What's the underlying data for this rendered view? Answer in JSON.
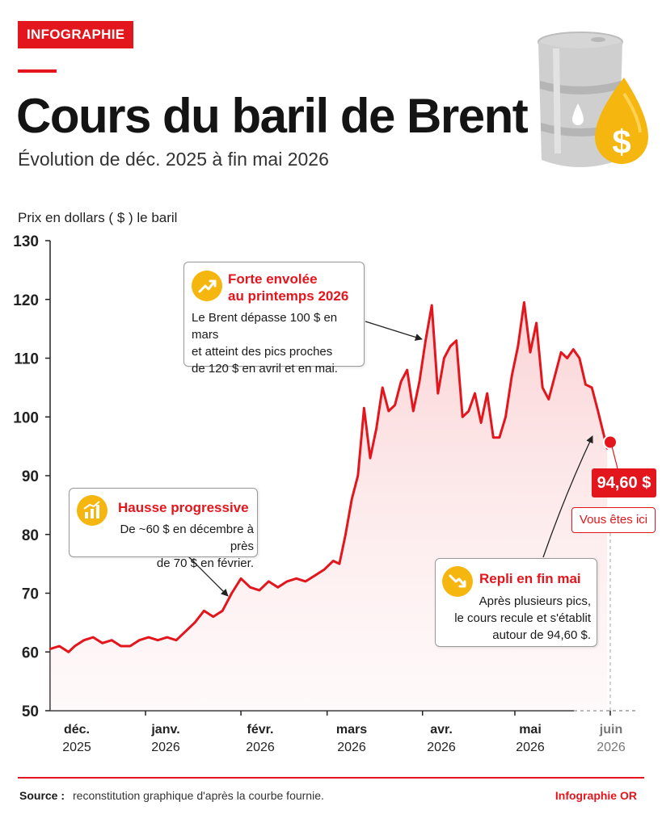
{
  "header": {
    "badge": "INFOGRAPHIE",
    "title": "Cours du baril de Brent",
    "subtitle": "Évolution de déc. 2025 à fin mai 2026"
  },
  "colors": {
    "accent": "#e3161d",
    "icon": "#f5b60f",
    "barrel": "#c9c9c9"
  },
  "icons": {
    "barrel": "oil-barrel-icon",
    "drop": "oil-drop-dollar-icon"
  },
  "chart_data": {
    "type": "line",
    "ylabel": "Prix en dollars ( $ ) le baril",
    "ylim": [
      50,
      130
    ],
    "yticks": [
      "130",
      "120",
      "110",
      "100",
      "90",
      "80",
      "70",
      "60",
      "50"
    ],
    "months": [
      {
        "name": "déc.",
        "year": "2025",
        "faded": false
      },
      {
        "name": "janv.",
        "year": "2026",
        "faded": false
      },
      {
        "name": "févr.",
        "year": "2026",
        "faded": false
      },
      {
        "name": "mars",
        "year": "2026",
        "faded": false
      },
      {
        "name": "avr.",
        "year": "2026",
        "faded": false
      },
      {
        "name": "mai",
        "year": "2026",
        "faded": false
      },
      {
        "name": "juin",
        "year": "2026",
        "faded": true
      }
    ],
    "series": [
      {
        "x": [
          "2025-12-01",
          "2025-12-04",
          "2025-12-07",
          "2025-12-09",
          "2025-12-12",
          "2025-12-15",
          "2025-12-18",
          "2025-12-21",
          "2025-12-24",
          "2025-12-27",
          "2025-12-30",
          "2026-01-02",
          "2026-01-05",
          "2026-01-08",
          "2026-01-11",
          "2026-01-14",
          "2026-01-17",
          "2026-01-20",
          "2026-01-23",
          "2026-01-26",
          "2026-01-29",
          "2026-02-01",
          "2026-02-04",
          "2026-02-07",
          "2026-02-10",
          "2026-02-13",
          "2026-02-16",
          "2026-02-19",
          "2026-02-22",
          "2026-02-25",
          "2026-02-28",
          "2026-03-03",
          "2026-03-05",
          "2026-03-07",
          "2026-03-09",
          "2026-03-11",
          "2026-03-13",
          "2026-03-15",
          "2026-03-17",
          "2026-03-19",
          "2026-03-21",
          "2026-03-23",
          "2026-03-25",
          "2026-03-27",
          "2026-03-29",
          "2026-03-31",
          "2026-04-02",
          "2026-04-04",
          "2026-04-06",
          "2026-04-08",
          "2026-04-10",
          "2026-04-12",
          "2026-04-14",
          "2026-04-16",
          "2026-04-18",
          "2026-04-20",
          "2026-04-22",
          "2026-04-24",
          "2026-04-26",
          "2026-04-28",
          "2026-04-30",
          "2026-05-02",
          "2026-05-04",
          "2026-05-06",
          "2026-05-08",
          "2026-05-10",
          "2026-05-12",
          "2026-05-14",
          "2026-05-16",
          "2026-05-18",
          "2026-05-20",
          "2026-05-22",
          "2026-05-24",
          "2026-05-26",
          "2026-05-28",
          "2026-05-31"
        ],
        "values": [
          60.5,
          61,
          60,
          61,
          62,
          62.5,
          61.5,
          62,
          61,
          61,
          62,
          62.5,
          62,
          62.5,
          62,
          63.5,
          65,
          67,
          66,
          67,
          70,
          72.5,
          71,
          70.5,
          72,
          71,
          72,
          72.5,
          72,
          73,
          74,
          75.5,
          75,
          80,
          86,
          90,
          101.5,
          93,
          98,
          105,
          101,
          102,
          106,
          108,
          101,
          106,
          113,
          119,
          104,
          110,
          112,
          113,
          100,
          101,
          104,
          99,
          104,
          96.5,
          96.5,
          100,
          107,
          112,
          119.5,
          111,
          116,
          105,
          103,
          107,
          111,
          110,
          111.5,
          110,
          105.5,
          105,
          101,
          94.6
        ]
      }
    ],
    "current": {
      "value": "94,60 $",
      "label": "Vous êtes ici"
    },
    "annotations": {
      "spring": {
        "title": "Forte envolée\nau printemps 2026",
        "text": "Le Brent dépasse 100 $ en mars\net atteint des pics proches\nde 120 $ en avril et en mai."
      },
      "rise": {
        "title": "Hausse progressive",
        "text": "De ~60 $ en décembre à près\nde 70 $ en février."
      },
      "drop": {
        "title": "Repli en fin mai",
        "text": "Après plusieurs pics,\nle cours recule et s'établit\nautour de 94,60 $."
      }
    }
  },
  "footer": {
    "source_label": "Source :",
    "source_text": "reconstitution graphique d'après la courbe fournie.",
    "credit": "Infographie OR"
  }
}
